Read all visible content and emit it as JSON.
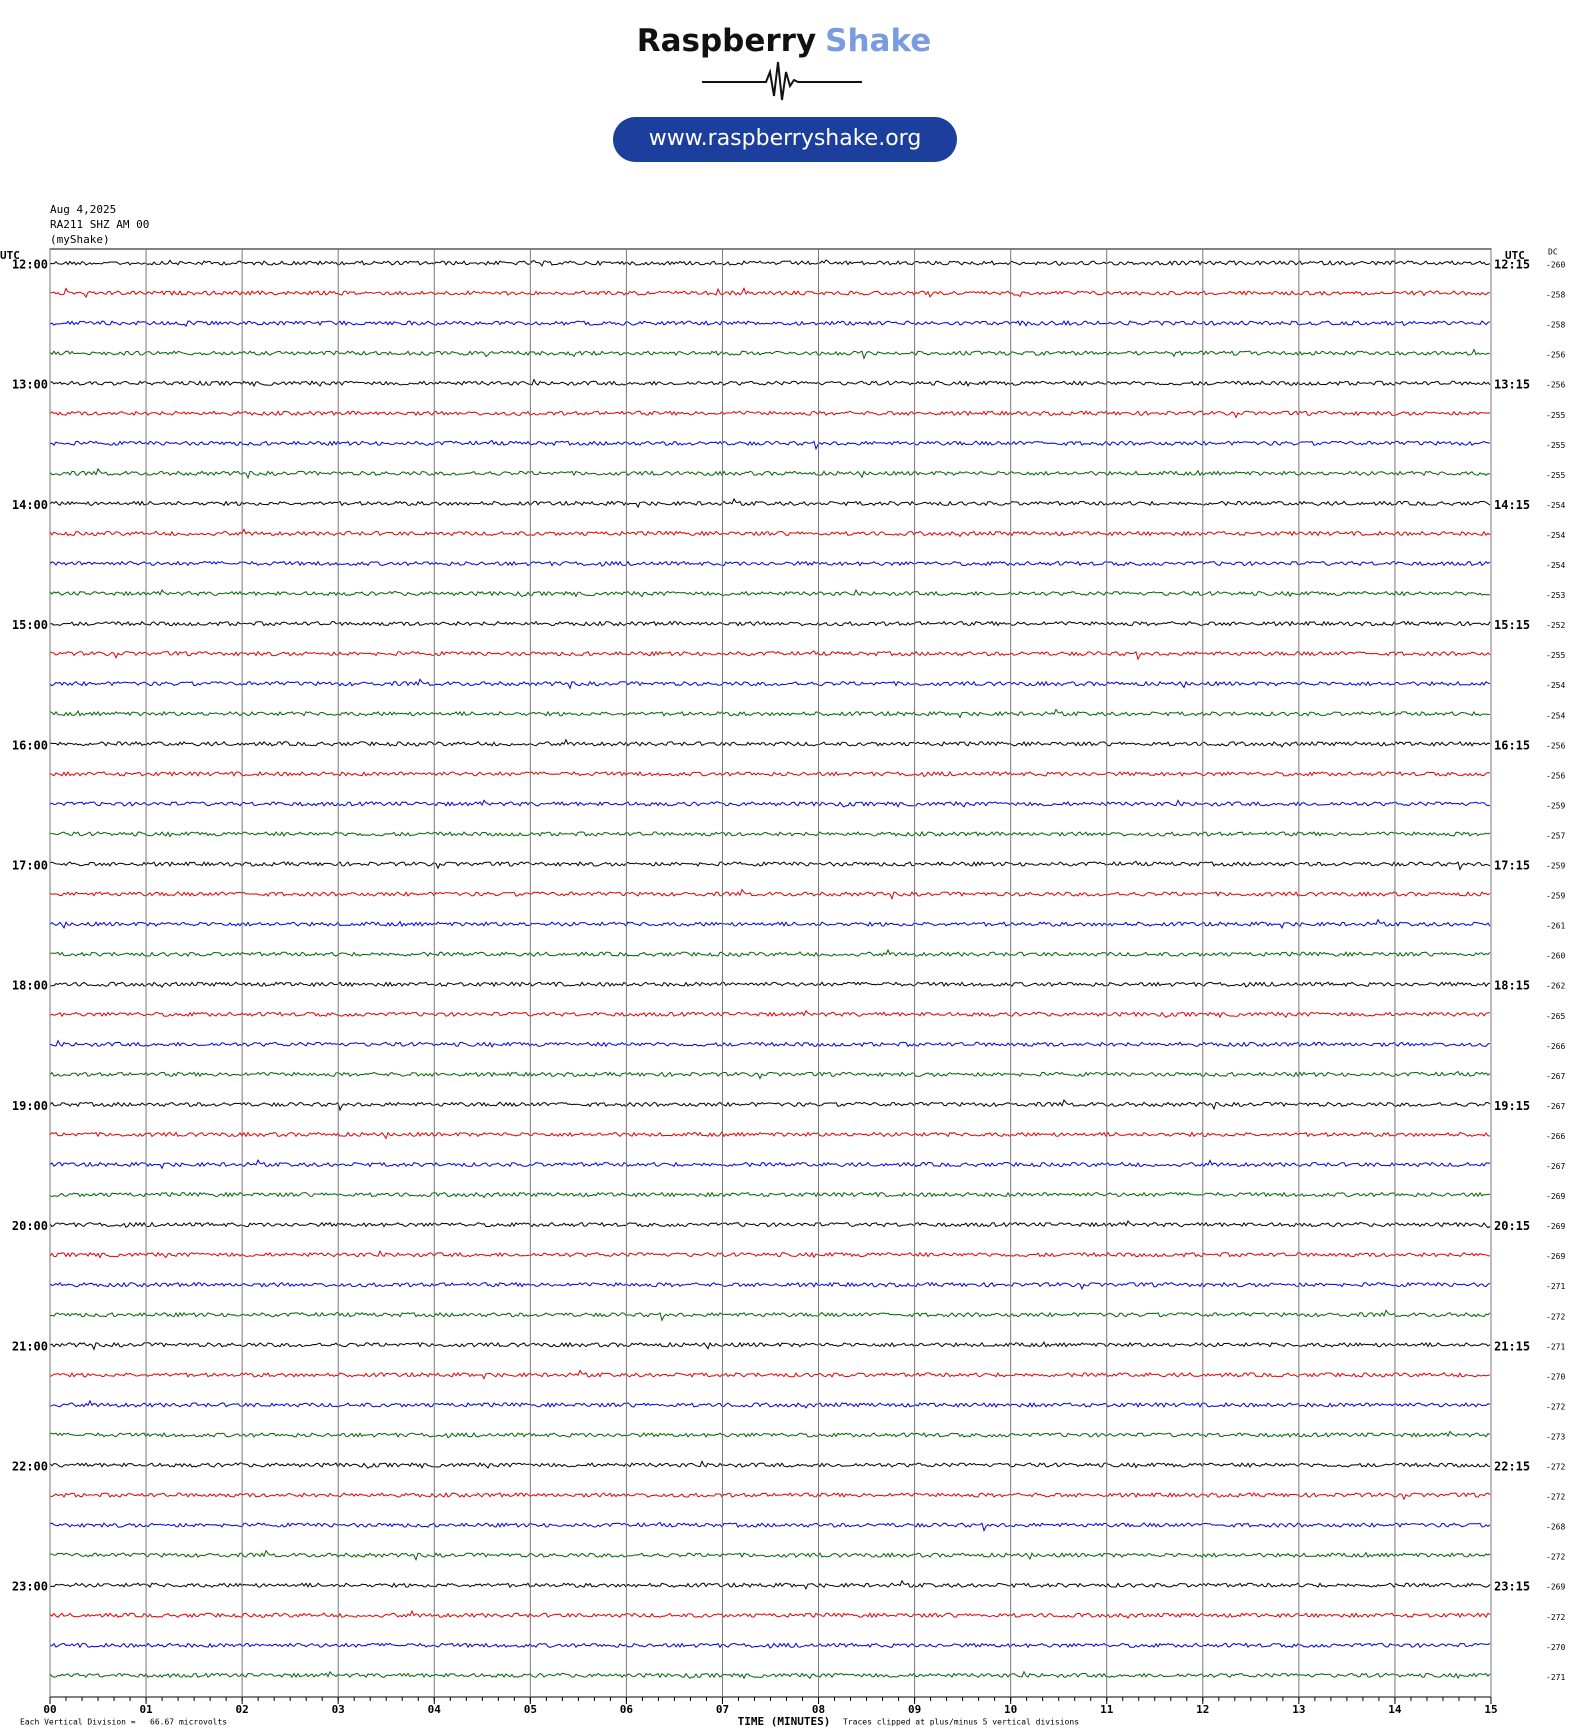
{
  "header": {
    "logo_word_1": "Raspberry",
    "logo_word_2": "Shake",
    "url": "www.raspberryshake.org"
  },
  "chart_data": {
    "type": "helicorder",
    "date": "Aug 4,2025",
    "station": "RA211 SHZ AM 00",
    "source": "(myShake)",
    "left_axis_label": "UTC",
    "right_axis_label": "UTC",
    "dc_label": "DC",
    "row_start_labels": [
      "12:00",
      "13:00",
      "14:00",
      "15:00",
      "16:00",
      "17:00",
      "18:00",
      "19:00",
      "20:00",
      "21:00",
      "22:00",
      "23:00"
    ],
    "row_end_labels": [
      "12:15",
      "13:15",
      "14:15",
      "15:15",
      "16:15",
      "17:15",
      "18:15",
      "19:15",
      "20:15",
      "21:15",
      "22:15",
      "23:15"
    ],
    "dc_values": [
      -260,
      -258,
      -258,
      -256,
      -256,
      -255,
      -255,
      -255,
      -254,
      -254,
      -254,
      -253,
      -252,
      -255,
      -254,
      -254,
      -256,
      -256,
      -259,
      -257,
      -259,
      -259,
      -261,
      -260,
      -262,
      -265,
      -266,
      -267,
      -267,
      -266,
      -267,
      -269,
      -269,
      -269,
      -271,
      -272,
      -271,
      -270,
      -272,
      -273,
      -272,
      -272,
      -268,
      -272,
      -269,
      -272,
      -270,
      -271
    ],
    "trace_colors": [
      "#000000",
      "#e00000",
      "#0000d8",
      "#006400"
    ],
    "xlim": [
      0,
      15
    ],
    "xticks": [
      {
        "value": 0,
        "label": "00"
      },
      {
        "value": 1,
        "label": "01"
      },
      {
        "value": 2,
        "label": "02"
      },
      {
        "value": 3,
        "label": "03"
      },
      {
        "value": 4,
        "label": "04"
      },
      {
        "value": 5,
        "label": "05"
      },
      {
        "value": 6,
        "label": "06"
      },
      {
        "value": 7,
        "label": "07"
      },
      {
        "value": 8,
        "label": "08"
      },
      {
        "value": 9,
        "label": "09"
      },
      {
        "value": 10,
        "label": "10"
      },
      {
        "value": 11,
        "label": "11"
      },
      {
        "value": 12,
        "label": "12"
      },
      {
        "value": 13,
        "label": "13"
      },
      {
        "value": 14,
        "label": "14"
      },
      {
        "value": 15,
        "label": "15"
      }
    ],
    "xlabel": "TIME (MINUTES)",
    "footnote_left": "Each Vertical Division =   66.67 microvolts",
    "footnote_right": "Traces clipped at plus/minus 5 vertical divisions"
  }
}
